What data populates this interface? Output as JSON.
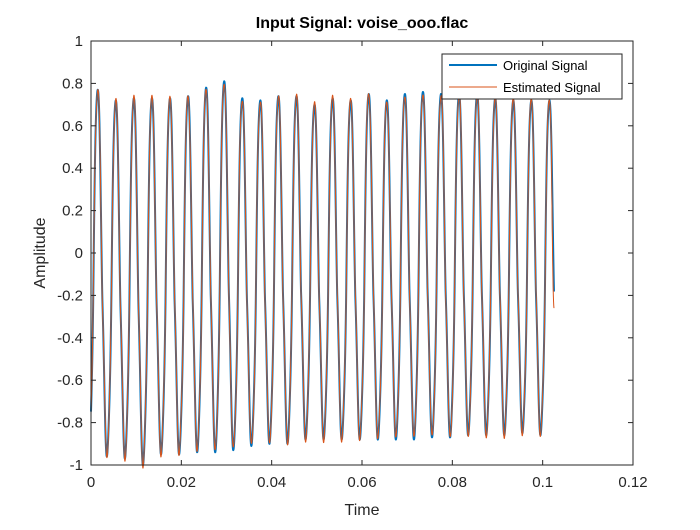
{
  "chart_data": {
    "type": "line",
    "title": "Input Signal: voise_ooo.flac",
    "xlabel": "Time",
    "ylabel": "Amplitude",
    "xlim": [
      0,
      0.12
    ],
    "ylim": [
      -1,
      1
    ],
    "xticks": [
      0,
      0.02,
      0.04,
      0.06,
      0.08,
      0.1,
      0.12
    ],
    "xtick_labels": [
      "0",
      "0.02",
      "0.04",
      "0.06",
      "0.08",
      "0.1",
      "0.12"
    ],
    "yticks": [
      -1,
      -0.8,
      -0.6,
      -0.4,
      -0.2,
      0,
      0.2,
      0.4,
      0.6,
      0.8,
      1
    ],
    "ytick_labels": [
      "-1",
      "-0.8",
      "-0.6",
      "-0.4",
      "-0.2",
      "0",
      "0.2",
      "0.4",
      "0.6",
      "0.8",
      "1"
    ],
    "grid": false,
    "box": true,
    "legend_position": "top-right",
    "signal": {
      "t_end": 0.1025,
      "fundamental_period": 0.004,
      "peak_period": 0.004,
      "peaks_x": [
        0.0015,
        0.0055,
        0.0095,
        0.0135,
        0.0175,
        0.0215,
        0.0255,
        0.0295,
        0.0335,
        0.0375,
        0.0415,
        0.0455,
        0.0495,
        0.0535,
        0.0575,
        0.0615,
        0.0655,
        0.0695,
        0.0735,
        0.0775,
        0.0815,
        0.0855,
        0.0895,
        0.0935,
        0.0975,
        0.1015
      ],
      "peaks_y": [
        0.77,
        0.72,
        0.73,
        0.73,
        0.73,
        0.74,
        0.78,
        0.81,
        0.73,
        0.72,
        0.74,
        0.74,
        0.7,
        0.73,
        0.72,
        0.75,
        0.72,
        0.75,
        0.76,
        0.75,
        0.75,
        0.75,
        0.73,
        0.72,
        0.72,
        0.72
      ],
      "troughs_x": [
        0.0035,
        0.0075,
        0.0115,
        0.0155,
        0.0195,
        0.0235,
        0.0275,
        0.0315,
        0.0355,
        0.0395,
        0.0435,
        0.0475,
        0.0515,
        0.0555,
        0.0595,
        0.0635,
        0.0675,
        0.0715,
        0.0755,
        0.0795,
        0.0835,
        0.0875,
        0.0915,
        0.0955,
        0.0995
      ],
      "troughs_y": [
        -0.96,
        -0.97,
        -1.0,
        -0.95,
        -0.95,
        -0.94,
        -0.94,
        -0.93,
        -0.91,
        -0.9,
        -0.9,
        -0.88,
        -0.88,
        -0.88,
        -0.88,
        -0.88,
        -0.88,
        -0.88,
        -0.87,
        -0.87,
        -0.86,
        -0.86,
        -0.86,
        -0.85,
        -0.86
      ],
      "secondary_peak_y": 0.45,
      "secondary_dip_y": 0.18
    },
    "series": [
      {
        "name": "Original Signal",
        "color": "#0072BD",
        "line_width": 2.0
      },
      {
        "name": "Estimated Signal",
        "color": "#D95319",
        "line_width": 1.0,
        "end_value": -0.26
      }
    ]
  }
}
